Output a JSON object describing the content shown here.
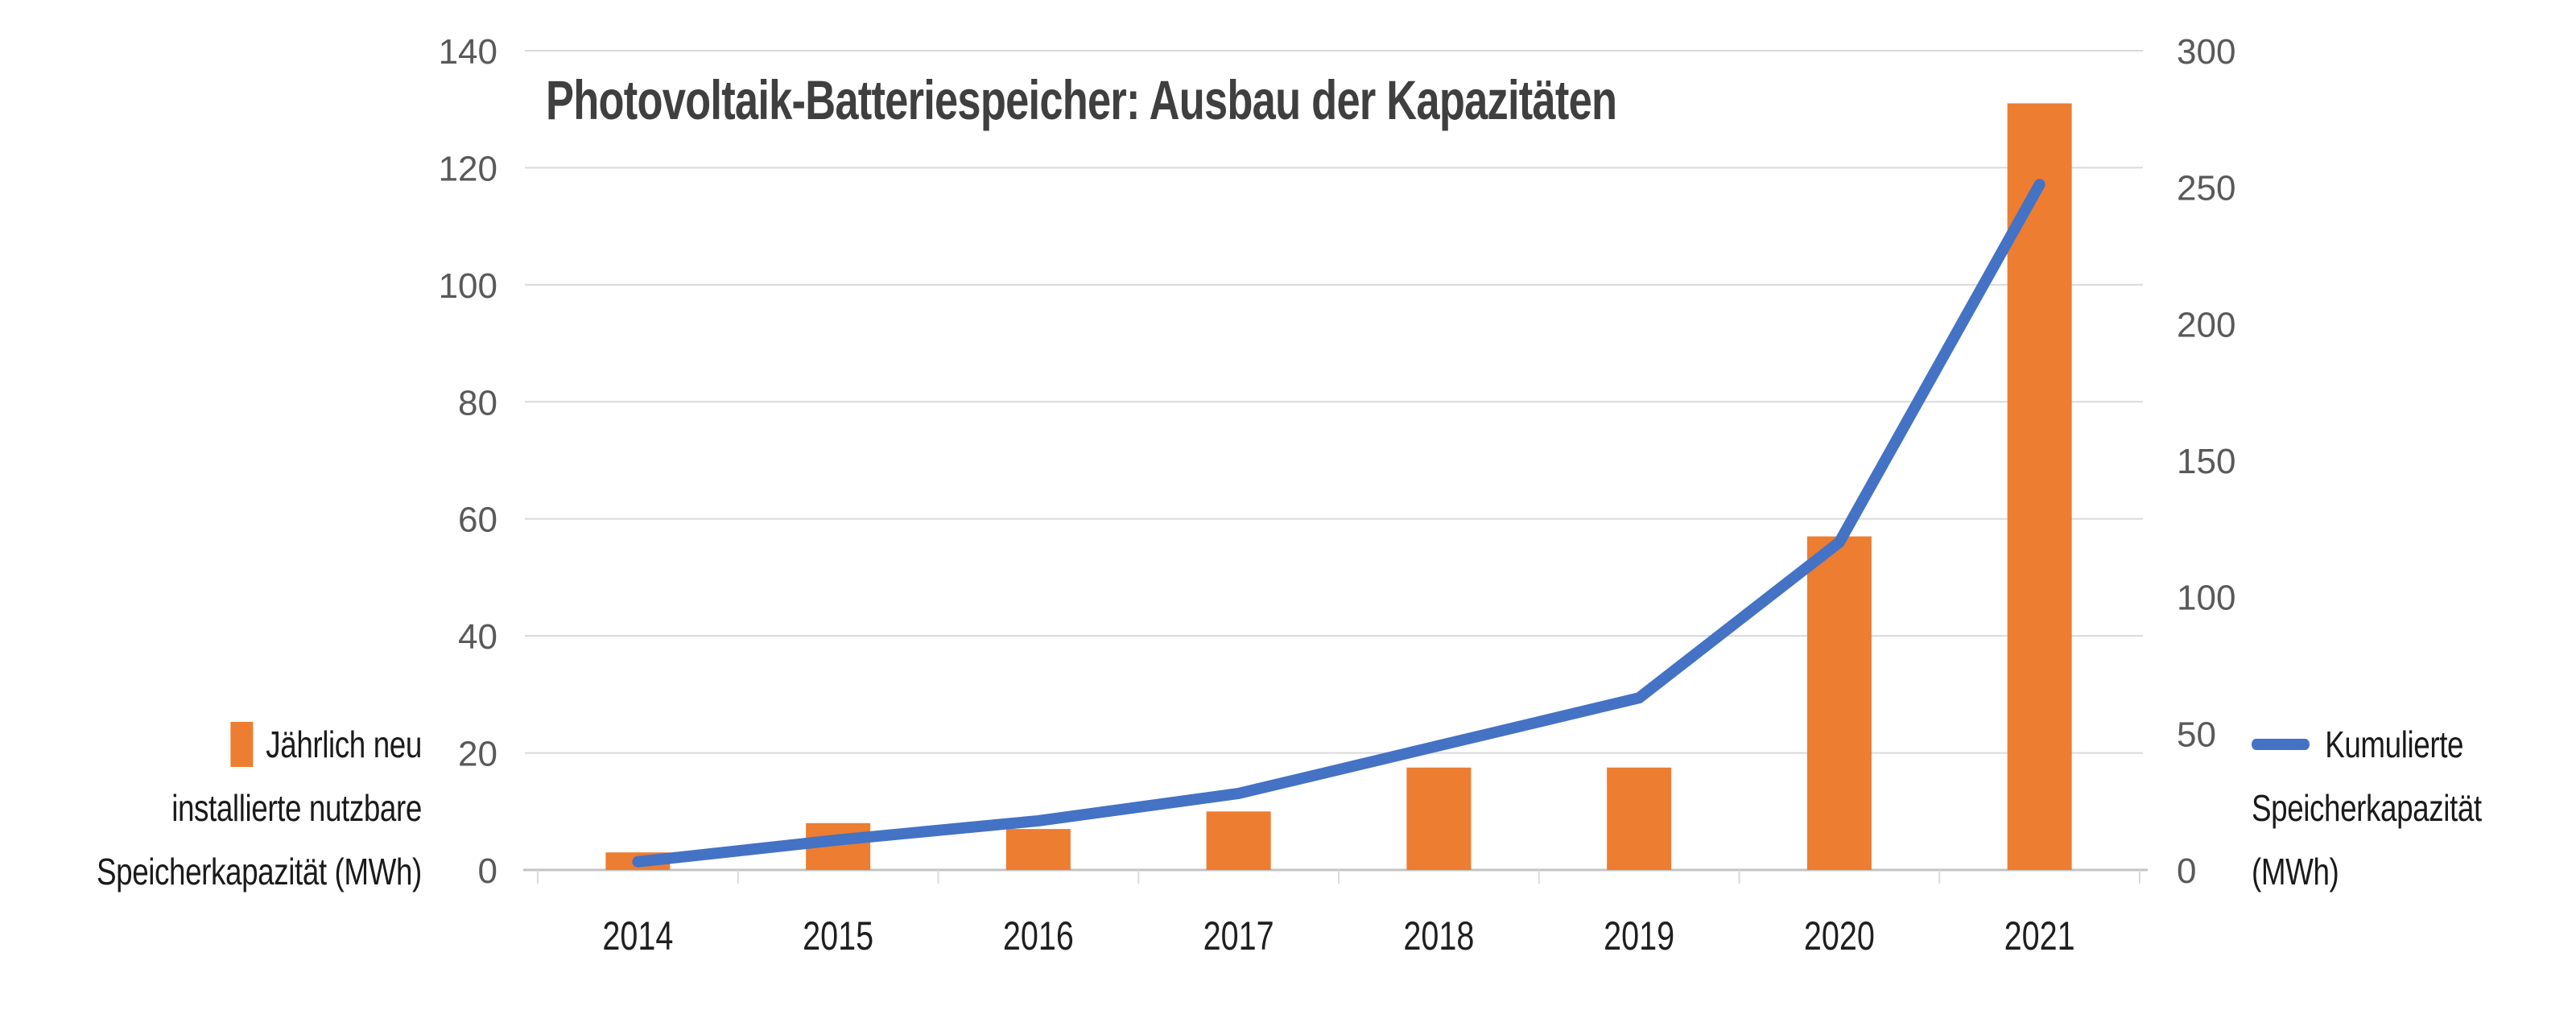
{
  "chart_data": {
    "type": "bar+line",
    "title": "Photovoltaik-Batteriespeicher: Ausbau der Kapazitäten",
    "categories": [
      "2014",
      "2015",
      "2016",
      "2017",
      "2018",
      "2019",
      "2020",
      "2021"
    ],
    "series": [
      {
        "name": "Jährlich neu installierte nutzbare Speicherkapazität (MWh)",
        "type": "bar",
        "axis": "left",
        "values": [
          3,
          8,
          7,
          10,
          17.5,
          17.5,
          57,
          131
        ]
      },
      {
        "name": "Kumulierte Speicherkapazität (MWh)",
        "type": "line",
        "axis": "right",
        "values": [
          3,
          11,
          18,
          28,
          45.5,
          63,
          120,
          251
        ]
      }
    ],
    "axis_left": {
      "min": 0,
      "max": 140,
      "tick_step": 20,
      "tick_labels": [
        "140",
        "120",
        "100",
        "80",
        "60",
        "40",
        "20",
        "0"
      ]
    },
    "axis_right": {
      "min": 0,
      "max": 300,
      "tick_step": 50,
      "tick_labels": [
        "300",
        "250",
        "200",
        "150",
        "100",
        "50",
        "0"
      ]
    },
    "grid": true,
    "legend_position": "left and right of plot, lower area"
  },
  "legend_left": {
    "lines": [
      "Jährlich neu",
      "installierte nutzbare",
      "Speicherkapazität (MWh)"
    ]
  },
  "legend_right": {
    "lines": [
      "Kumulierte",
      "Speicherkapazität",
      "(MWh)"
    ]
  },
  "colors": {
    "bar": "#ED7D31",
    "line": "#4472C4",
    "title_text": "#3F3F3F",
    "axis_text": "#595959",
    "year_text": "#1F1F1F",
    "legend_text": "#1A1A1A",
    "gridline": "#DADADA",
    "axis_line": "#C3C3C3",
    "background": "#FFFFFF"
  }
}
